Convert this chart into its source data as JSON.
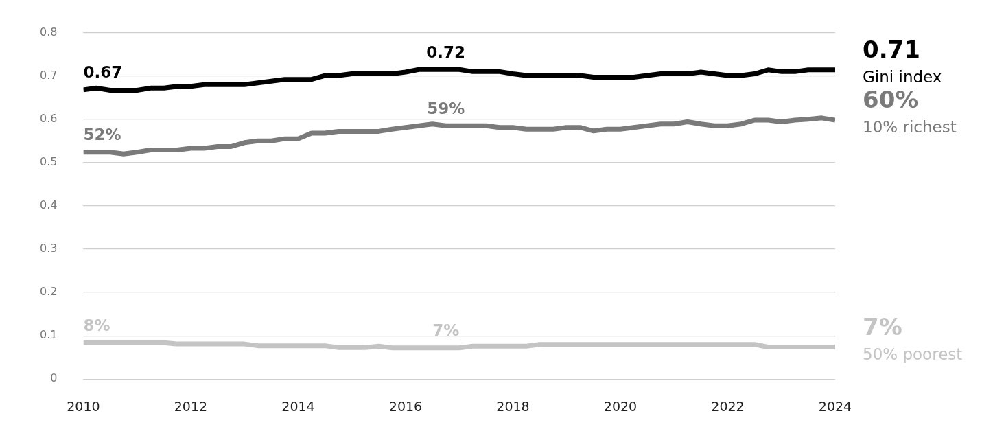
{
  "chart_data": {
    "type": "line",
    "x": [
      2010,
      2010.25,
      2010.5,
      2010.75,
      2011,
      2011.25,
      2011.5,
      2011.75,
      2012,
      2012.25,
      2012.5,
      2012.75,
      2013,
      2013.25,
      2013.5,
      2013.75,
      2014,
      2014.25,
      2014.5,
      2014.75,
      2015,
      2015.25,
      2015.5,
      2015.75,
      2016,
      2016.25,
      2016.5,
      2016.75,
      2017,
      2017.25,
      2017.5,
      2017.75,
      2018,
      2018.25,
      2018.5,
      2018.75,
      2019,
      2019.25,
      2019.5,
      2019.75,
      2020,
      2020.25,
      2020.5,
      2020.75,
      2021,
      2021.25,
      2021.5,
      2021.75,
      2022,
      2022.25,
      2022.5,
      2022.75,
      2023,
      2023.25,
      2023.5,
      2023.75,
      2024
    ],
    "series": [
      {
        "name": "Gini index",
        "color": "#000000",
        "values": [
          0.668,
          0.672,
          0.667,
          0.667,
          0.667,
          0.672,
          0.672,
          0.676,
          0.676,
          0.68,
          0.68,
          0.68,
          0.68,
          0.684,
          0.688,
          0.692,
          0.692,
          0.692,
          0.701,
          0.701,
          0.705,
          0.705,
          0.705,
          0.705,
          0.709,
          0.715,
          0.715,
          0.715,
          0.715,
          0.71,
          0.71,
          0.71,
          0.705,
          0.701,
          0.701,
          0.701,
          0.701,
          0.701,
          0.697,
          0.697,
          0.697,
          0.697,
          0.701,
          0.705,
          0.705,
          0.705,
          0.709,
          0.705,
          0.701,
          0.701,
          0.705,
          0.714,
          0.71,
          0.71,
          0.714,
          0.714,
          0.714
        ],
        "value_labels": [
          "0.67",
          null,
          null,
          null,
          null,
          null,
          null,
          null,
          null,
          null,
          null,
          null,
          null,
          null,
          null,
          null,
          null,
          null,
          null,
          null,
          null,
          null,
          null,
          null,
          null,
          null,
          null,
          "0.72",
          null,
          null,
          null,
          null,
          null,
          null,
          null,
          null,
          null,
          null,
          null,
          null,
          null,
          null,
          null,
          null,
          null,
          null,
          null,
          null,
          null,
          null,
          null,
          null,
          null,
          null,
          null,
          null,
          "0.71"
        ]
      },
      {
        "name": "10% richest",
        "color": "#7a7a7a",
        "values": [
          0.524,
          0.524,
          0.524,
          0.52,
          0.524,
          0.529,
          0.529,
          0.529,
          0.533,
          0.533,
          0.537,
          0.537,
          0.546,
          0.55,
          0.55,
          0.555,
          0.555,
          0.568,
          0.568,
          0.572,
          0.572,
          0.572,
          0.572,
          0.577,
          0.581,
          0.585,
          0.589,
          0.585,
          0.585,
          0.585,
          0.585,
          0.581,
          0.581,
          0.577,
          0.577,
          0.577,
          0.581,
          0.581,
          0.573,
          0.577,
          0.577,
          0.581,
          0.585,
          0.589,
          0.589,
          0.594,
          0.589,
          0.585,
          0.585,
          0.589,
          0.598,
          0.598,
          0.594,
          0.598,
          0.6,
          0.603,
          0.598
        ],
        "value_labels": [
          "52%",
          null,
          null,
          null,
          null,
          null,
          null,
          null,
          null,
          null,
          null,
          null,
          null,
          null,
          null,
          null,
          null,
          null,
          null,
          null,
          null,
          null,
          null,
          null,
          null,
          null,
          null,
          "59%",
          null,
          null,
          null,
          null,
          null,
          null,
          null,
          null,
          null,
          null,
          null,
          null,
          null,
          null,
          null,
          null,
          null,
          null,
          null,
          null,
          null,
          null,
          null,
          null,
          null,
          null,
          null,
          null,
          "60%"
        ]
      },
      {
        "name": "50% poorest",
        "color": "#c4c4c4",
        "values": [
          0.084,
          0.084,
          0.084,
          0.084,
          0.084,
          0.084,
          0.084,
          0.081,
          0.081,
          0.081,
          0.081,
          0.081,
          0.081,
          0.077,
          0.077,
          0.077,
          0.077,
          0.077,
          0.077,
          0.073,
          0.073,
          0.073,
          0.076,
          0.072,
          0.072,
          0.072,
          0.072,
          0.072,
          0.072,
          0.076,
          0.076,
          0.076,
          0.076,
          0.076,
          0.08,
          0.08,
          0.08,
          0.08,
          0.08,
          0.08,
          0.08,
          0.08,
          0.08,
          0.08,
          0.08,
          0.08,
          0.08,
          0.08,
          0.08,
          0.08,
          0.08,
          0.074,
          0.074,
          0.074,
          0.074,
          0.074,
          0.074
        ],
        "value_labels": [
          "8%",
          null,
          null,
          null,
          null,
          null,
          null,
          null,
          null,
          null,
          null,
          null,
          null,
          null,
          null,
          null,
          null,
          null,
          null,
          null,
          null,
          null,
          null,
          null,
          null,
          null,
          null,
          "7%",
          null,
          null,
          null,
          null,
          null,
          null,
          null,
          null,
          null,
          null,
          null,
          null,
          null,
          null,
          null,
          null,
          null,
          null,
          null,
          null,
          null,
          null,
          null,
          null,
          null,
          null,
          null,
          null,
          "7%"
        ]
      }
    ],
    "xlim": [
      2010,
      2024
    ],
    "xticks": [
      2010,
      2012,
      2014,
      2016,
      2018,
      2020,
      2022,
      2024
    ],
    "ylim": [
      0,
      0.8
    ],
    "yticks": [
      {
        "value": 0,
        "label": "0"
      },
      0.1,
      0.2,
      0.3,
      0.4,
      0.5,
      0.6,
      0.7,
      0.8
    ],
    "grid": "y",
    "legend": false,
    "marker": "none",
    "line_style": "solid"
  }
}
